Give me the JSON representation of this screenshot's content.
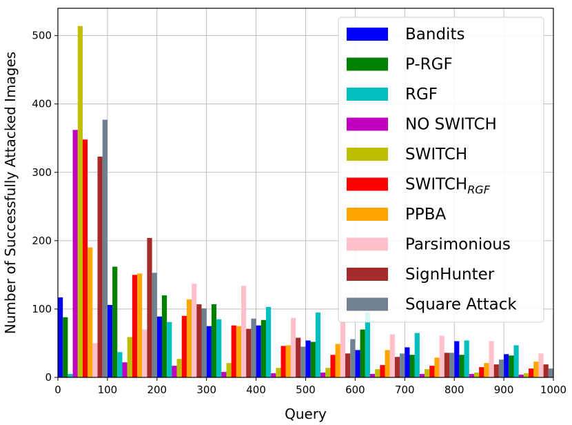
{
  "chart_data": {
    "type": "bar",
    "xlabel": "Query",
    "ylabel": "Number of Successfully Attacked Images",
    "xlim": [
      0,
      1000
    ],
    "ylim": [
      0,
      540
    ],
    "xticks": [
      0,
      100,
      200,
      300,
      400,
      500,
      600,
      700,
      800,
      900,
      1000
    ],
    "yticks": [
      0,
      100,
      200,
      300,
      400,
      500
    ],
    "grid": true,
    "legend_position": "top-right",
    "bin_width": 100,
    "bins": [
      0,
      100,
      200,
      300,
      400,
      500,
      600,
      700,
      800,
      900
    ],
    "series": [
      {
        "name": "Bandits",
        "color": "#0000ff",
        "values": [
          117,
          106,
          89,
          75,
          76,
          54,
          40,
          44,
          53,
          34
        ]
      },
      {
        "name": "P-RGF",
        "color": "#008000",
        "values": [
          88,
          162,
          120,
          107,
          84,
          52,
          70,
          33,
          33,
          32
        ]
      },
      {
        "name": "RGF",
        "color": "#00bfbf",
        "values": [
          5,
          37,
          81,
          85,
          103,
          95,
          95,
          65,
          54,
          47
        ]
      },
      {
        "name": "NO SWITCH",
        "color": "#bf00bf",
        "values": [
          362,
          22,
          17,
          8,
          6,
          7,
          5,
          5,
          5,
          4
        ]
      },
      {
        "name": "SWITCH",
        "color": "#bfbf00",
        "values": [
          514,
          59,
          27,
          21,
          14,
          14,
          12,
          12,
          7,
          6
        ]
      },
      {
        "name": "SWITCH_RGF",
        "label_base": "SWITCH",
        "label_sub": "RGF",
        "color": "#ff0000",
        "values": [
          348,
          150,
          90,
          76,
          46,
          33,
          18,
          17,
          15,
          13
        ]
      },
      {
        "name": "PPBA",
        "color": "#ffa500",
        "values": [
          190,
          152,
          114,
          75,
          47,
          49,
          40,
          29,
          21,
          23
        ]
      },
      {
        "name": "Parsimonious",
        "color": "#ffc0cb",
        "values": [
          50,
          70,
          137,
          134,
          87,
          82,
          63,
          61,
          53,
          35
        ]
      },
      {
        "name": "SignHunter",
        "color": "#a52a2a",
        "values": [
          323,
          204,
          107,
          71,
          58,
          35,
          30,
          36,
          19,
          19
        ]
      },
      {
        "name": "Square Attack",
        "color": "#708090",
        "values": [
          377,
          153,
          101,
          86,
          45,
          56,
          35,
          36,
          26,
          13
        ]
      }
    ]
  }
}
